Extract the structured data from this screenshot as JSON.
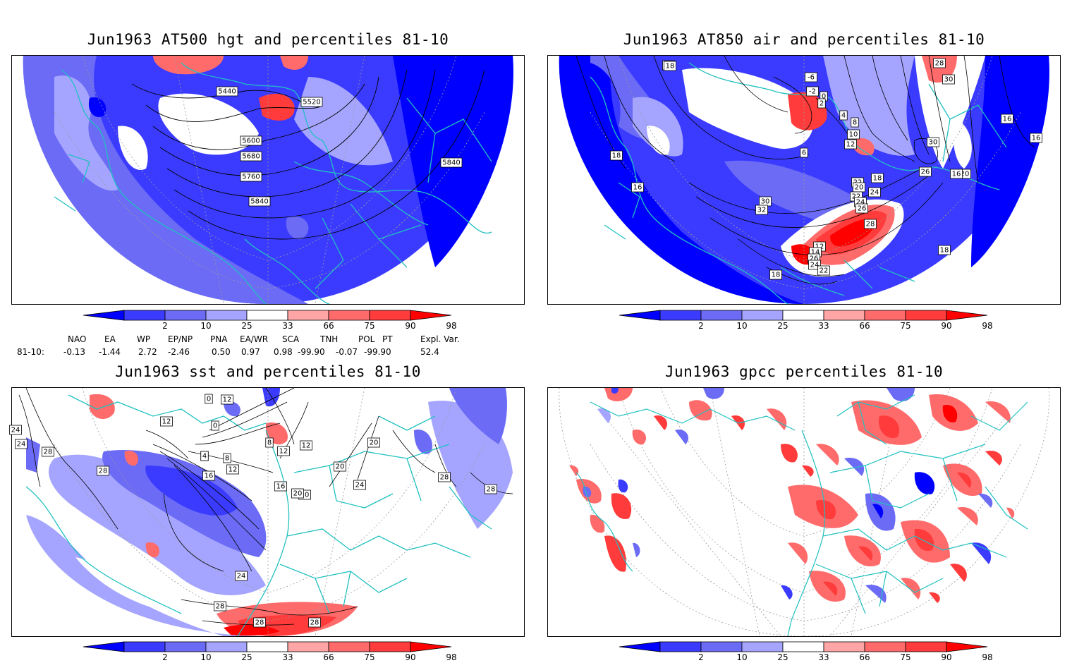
{
  "panels": [
    {
      "id": "hgt",
      "title": "Jun1963 AT500 hgt and percentiles 81-10",
      "contour_labels": [
        "5440",
        "5520",
        "5600",
        "5680",
        "5760",
        "5840",
        "5840"
      ]
    },
    {
      "id": "air",
      "title": "Jun1963 AT850 air and percentiles 81-10",
      "contour_labels": [
        "20",
        "18",
        "-6",
        "-2",
        "0",
        "2",
        "4",
        "8",
        "10",
        "12",
        "6",
        "18",
        "16",
        "16",
        "16",
        "16",
        "18",
        "22",
        "28",
        "30",
        "30",
        "26",
        "24",
        "20",
        "22",
        "24",
        "26",
        "28",
        "30",
        "32",
        "12",
        "14",
        "26",
        "24",
        "22",
        "20",
        "18",
        "16",
        "18"
      ]
    },
    {
      "id": "sst",
      "title": "Jun1963 sst and percentiles 81-10",
      "contour_labels": [
        "24",
        "24",
        "28",
        "12",
        "0",
        "0",
        "12",
        "4",
        "8",
        "12",
        "12",
        "4",
        "8",
        "12",
        "16",
        "16",
        "20",
        "20",
        "20",
        "20",
        "24",
        "28",
        "28",
        "28",
        "24",
        "28",
        "28",
        "28"
      ]
    },
    {
      "id": "gpcc",
      "title": "Jun1963 gpcc percentiles 81-10",
      "contour_labels": []
    }
  ],
  "colorbar": {
    "ticks": [
      "2",
      "10",
      "25",
      "33",
      "66",
      "75",
      "90",
      "98"
    ],
    "colors": {
      "below2": "#0000ff",
      "c2_10": "#3b3bff",
      "c10_25": "#6b6bf5",
      "c25_33": "#a5a5ff",
      "c33_66": "#ffffff",
      "c66_75": "#ffa5a5",
      "c75_90": "#ff6b6b",
      "c90_98": "#ff3b3b",
      "above98": "#ff0000"
    }
  },
  "teleconnections": {
    "headers": [
      "NAO",
      "EA",
      "WP",
      "EP/NP",
      "PNA",
      "EA/WR",
      "SCA",
      "TNH",
      "POL",
      "PT",
      "Expl. Var."
    ],
    "row_label": "81-10:",
    "values": [
      "-0.13",
      "-1.44",
      "2.72",
      "-2.46",
      "0.50",
      "0.97",
      "0.98",
      "-99.90",
      "-0.07",
      "-99.90",
      "52.4"
    ]
  },
  "map_colors": {
    "coast": "#20c0c0",
    "contour": "#000000",
    "grid": "#9a9a9a"
  }
}
